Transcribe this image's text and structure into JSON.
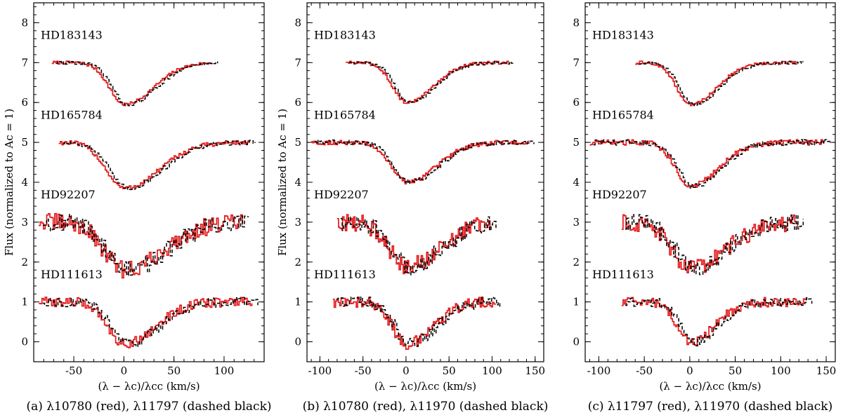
{
  "chart_data": [
    {
      "type": "line",
      "caption": "(a) λ10780 (red), λ11797 (dashed black)",
      "xlabel": "(λ − λc)/λcc (km/s)",
      "ylabel": "Flux (normalized to Ac = 1)",
      "xlim": [
        -90,
        140
      ],
      "ylim": [
        -0.5,
        8.5
      ],
      "xticks": [
        -50,
        0,
        50,
        100
      ],
      "yticks": [
        0,
        1,
        2,
        3,
        4,
        5,
        6,
        7,
        8
      ],
      "series": [
        {
          "name": "λ10780",
          "color": "#e41a1c",
          "style": "solid"
        },
        {
          "name": "λ11797",
          "color": "#000000",
          "style": "dashed"
        }
      ],
      "stars": [
        {
          "label": "HD183143",
          "offset": 7,
          "depth": 1.05,
          "width": 15,
          "noise": 0.04,
          "xstart": -72,
          "xend": 95,
          "label_y": 7.7
        },
        {
          "label": "HD165784",
          "offset": 5,
          "depth": 1.15,
          "width": 18,
          "noise": 0.06,
          "xstart": -65,
          "xend": 132,
          "label_y": 5.7
        },
        {
          "label": "HD92207",
          "offset": 3,
          "depth": 1.2,
          "width": 20,
          "noise": 0.22,
          "xstart": -85,
          "xend": 125,
          "label_y": 3.7
        },
        {
          "label": "HD111613",
          "offset": 1,
          "depth": 1.05,
          "width": 16,
          "noise": 0.12,
          "xstart": -85,
          "xend": 135,
          "label_y": 1.7
        }
      ]
    },
    {
      "type": "line",
      "caption": "(b) λ10780 (red), λ11970 (dashed black)",
      "xlabel": "(λ − λc)/λcc (km/s)",
      "ylabel": "Flux (normalized to Ac = 1)",
      "xlim": [
        -115,
        160
      ],
      "ylim": [
        -0.5,
        8.5
      ],
      "xticks": [
        -100,
        -50,
        0,
        50,
        100,
        150
      ],
      "yticks": [
        0,
        1,
        2,
        3,
        4,
        5,
        6,
        7,
        8
      ],
      "series": [
        {
          "name": "λ10780",
          "color": "#e41a1c",
          "style": "solid"
        },
        {
          "name": "λ11970",
          "color": "#000000",
          "style": "dashed"
        }
      ],
      "stars": [
        {
          "label": "HD183143",
          "offset": 7,
          "depth": 1.0,
          "width": 16,
          "noise": 0.04,
          "xstart": -70,
          "xend": 125,
          "label_y": 7.7
        },
        {
          "label": "HD165784",
          "offset": 5,
          "depth": 1.0,
          "width": 18,
          "noise": 0.06,
          "xstart": -110,
          "xend": 150,
          "label_y": 5.7
        },
        {
          "label": "HD92207",
          "offset": 3,
          "depth": 1.1,
          "width": 20,
          "noise": 0.22,
          "xstart": -80,
          "xend": 105,
          "label_y": 3.7
        },
        {
          "label": "HD111613",
          "offset": 1,
          "depth": 1.05,
          "width": 16,
          "noise": 0.14,
          "xstart": -85,
          "xend": 110,
          "label_y": 1.7
        }
      ]
    },
    {
      "type": "line",
      "caption": "(c) λ11797 (red), λ11970 (dashed black)",
      "xlabel": "(λ − λc)/λcc (km/s)",
      "ylabel": "",
      "xlim": [
        -115,
        160
      ],
      "ylim": [
        -0.5,
        8.5
      ],
      "xticks": [
        -100,
        -50,
        0,
        50,
        100,
        150
      ],
      "yticks": [
        0,
        1,
        2,
        3,
        4,
        5,
        6,
        7,
        8
      ],
      "series": [
        {
          "name": "λ11797",
          "color": "#e41a1c",
          "style": "solid"
        },
        {
          "name": "λ11970",
          "color": "#000000",
          "style": "dashed"
        }
      ],
      "stars": [
        {
          "label": "HD183143",
          "offset": 7,
          "depth": 1.05,
          "width": 15,
          "noise": 0.04,
          "xstart": -60,
          "xend": 125,
          "label_y": 7.7
        },
        {
          "label": "HD165784",
          "offset": 5,
          "depth": 1.1,
          "width": 16,
          "noise": 0.07,
          "xstart": -110,
          "xend": 155,
          "label_y": 5.7
        },
        {
          "label": "HD92207",
          "offset": 3,
          "depth": 1.15,
          "width": 20,
          "noise": 0.22,
          "xstart": -75,
          "xend": 125,
          "label_y": 3.7
        },
        {
          "label": "HD111613",
          "offset": 1,
          "depth": 1.0,
          "width": 14,
          "noise": 0.12,
          "xstart": -75,
          "xend": 135,
          "label_y": 1.7
        }
      ]
    }
  ]
}
